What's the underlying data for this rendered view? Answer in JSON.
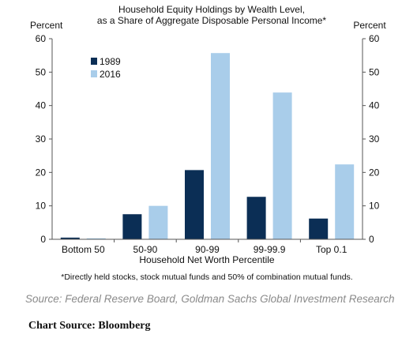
{
  "chart_data": {
    "type": "bar",
    "title_line1": "Household Equity Holdings by Wealth Level,",
    "title_line2": "as a Share of Aggregate Disposable Personal Income*",
    "ylabel_left": "Percent",
    "ylabel_right": "Percent",
    "xlabel": "Household Net Worth Percentile",
    "ylim": [
      0,
      60
    ],
    "yticks": [
      "0",
      "10",
      "20",
      "30",
      "40",
      "50",
      "60"
    ],
    "categories": [
      "Bottom 50",
      "50-90",
      "90-99",
      "99-99.9",
      "Top 0.1"
    ],
    "series": [
      {
        "name": "1989",
        "color": "#0b2e55",
        "values": [
          0.5,
          7.5,
          20.7,
          12.7,
          6.2
        ]
      },
      {
        "name": "2016",
        "color": "#a9cdea",
        "values": [
          0.3,
          10.0,
          55.7,
          43.9,
          22.4
        ]
      }
    ],
    "legend_position": "top-left",
    "grid": false,
    "footnote": "*Directly held stocks, stock mutual funds and 50% of combination mutual funds."
  },
  "source_text": "Source: Federal Reserve Board, Goldman Sachs Global Investment Research",
  "chart_source_text": "Chart Source:  Bloomberg"
}
